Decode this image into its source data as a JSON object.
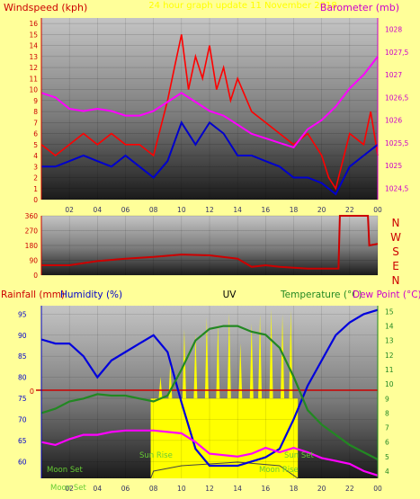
{
  "header": {
    "left_label": "Windspeed (kph)",
    "center_label": "24 hour graph update 11 November 2018",
    "right_label": "Barometer (mb)"
  },
  "colors": {
    "background": "#ffff99",
    "windspeed": "#ff0000",
    "gust": "#0000cc",
    "barometer": "#ff00ff",
    "direction": "#cc0000",
    "humidity": "#0000dd",
    "temperature": "#228822",
    "dewpoint": "#ff00ff",
    "uv": "#ffff00",
    "rainfall": "#cc0000",
    "daylight": "#ffff00",
    "axis_left": "#cc0000",
    "axis_right": "#cc00cc"
  },
  "bottom_header": {
    "rainfall": "Rainfall (mm)",
    "humidity": "Humidity (%)",
    "uv": "UV",
    "temperature": "Temperature (°C)",
    "dewpoint": "Dew Point (°C)"
  },
  "direction_labels": [
    "N",
    "W",
    "S",
    "E",
    "N"
  ],
  "annotations": {
    "moon_set": "Moon Set",
    "moon_set_bottom": "Moon Set",
    "sun_rise": "Sun Rise",
    "sun_set": "Sun Set",
    "moon_rise": "Moon Rise"
  },
  "chart_data": [
    {
      "type": "line",
      "title": "24 hour graph update 11 November 2018",
      "xlabel": "",
      "ylabel": "Windspeed (kph)",
      "y2label": "Barometer (mb)",
      "x_ticks": [
        "02",
        "04",
        "06",
        "08",
        "10",
        "12",
        "14",
        "16",
        "18",
        "20",
        "22",
        "00"
      ],
      "ylim": [
        0,
        16.5
      ],
      "yticks": [
        0,
        1,
        2,
        3,
        4,
        5,
        6,
        7,
        8,
        9,
        10,
        11,
        12,
        13,
        14,
        15,
        16
      ],
      "y2lim": [
        1024.25,
        1028.25
      ],
      "y2ticks": [
        1024.5,
        1025,
        1025.5,
        1026,
        1026.5,
        1027,
        1027.5,
        1028
      ],
      "y2tick_labels": [
        "1024,5",
        "1025",
        "1025,5",
        "1026",
        "1026,5",
        "1027",
        "1027,5",
        "1028"
      ],
      "series": [
        {
          "name": "Windspeed",
          "axis": "left",
          "x": [
            0,
            1,
            2,
            3,
            4,
            5,
            6,
            7,
            8,
            9,
            9.5,
            10,
            10.5,
            11,
            11.5,
            12,
            12.5,
            13,
            13.5,
            14,
            15,
            16,
            17,
            18,
            19,
            20,
            20.5,
            21,
            22,
            23,
            23.5,
            24
          ],
          "y": [
            5,
            4,
            5,
            6,
            5,
            6,
            5,
            5,
            4,
            9,
            12,
            15,
            10,
            13,
            11,
            14,
            10,
            12,
            9,
            11,
            8,
            7,
            6,
            5,
            6,
            4,
            2,
            1,
            6,
            5,
            8,
            4
          ]
        },
        {
          "name": "Gust",
          "axis": "left",
          "x": [
            0,
            1,
            2,
            3,
            4,
            5,
            6,
            7,
            8,
            9,
            10,
            11,
            12,
            13,
            14,
            15,
            16,
            17,
            18,
            19,
            20,
            21,
            22,
            23,
            24
          ],
          "y": [
            3,
            3,
            3.5,
            4,
            3.5,
            3,
            4,
            3,
            2,
            3.5,
            7,
            5,
            7,
            6,
            4,
            4,
            3.5,
            3,
            2,
            2,
            1.5,
            0.5,
            3,
            4,
            5
          ]
        },
        {
          "name": "Barometer",
          "axis": "right",
          "x": [
            0,
            1,
            2,
            3,
            4,
            5,
            6,
            7,
            8,
            9,
            10,
            11,
            12,
            13,
            14,
            15,
            16,
            17,
            18,
            19,
            20,
            21,
            22,
            23,
            24
          ],
          "y": [
            1026.6,
            1026.5,
            1026.25,
            1026.2,
            1026.25,
            1026.2,
            1026.1,
            1026.1,
            1026.2,
            1026.4,
            1026.6,
            1026.4,
            1026.2,
            1026.1,
            1025.9,
            1025.7,
            1025.6,
            1025.5,
            1025.4,
            1025.8,
            1026,
            1026.3,
            1026.7,
            1027,
            1027.4
          ]
        }
      ]
    },
    {
      "type": "line",
      "title": "",
      "xlabel": "",
      "ylabel": "",
      "ylim": [
        0,
        360
      ],
      "yticks": [
        0,
        90,
        180,
        270,
        360
      ],
      "series": [
        {
          "name": "",
          "x": [
            0,
            2,
            4,
            6,
            8,
            10,
            12,
            14,
            15,
            16,
            17,
            18,
            19,
            20,
            21.2,
            21.3,
            23.3,
            23.4,
            24
          ],
          "y": [
            60,
            60,
            85,
            100,
            110,
            125,
            120,
            100,
            50,
            60,
            50,
            45,
            40,
            40,
            40,
            360,
            360,
            180,
            190
          ]
        }
      ]
    },
    {
      "type": "line",
      "title": "",
      "xlabel": "",
      "ylabel": "Humidity (%)",
      "y2label": "Temperature (°C)",
      "rainfall_value": 0,
      "ylim": [
        56,
        97
      ],
      "yticks": [
        60,
        65,
        70,
        75,
        80,
        85,
        90,
        95
      ],
      "y2lim": [
        3.5,
        15.4
      ],
      "y2ticks": [
        4,
        5,
        6,
        7,
        8,
        9,
        10,
        11,
        12,
        13,
        14,
        15
      ],
      "series": [
        {
          "name": "Humidity",
          "axis": "left",
          "x": [
            0,
            1,
            2,
            3,
            4,
            5,
            6,
            7,
            8,
            9,
            10,
            11,
            12,
            13,
            14,
            15,
            16,
            17,
            18,
            19,
            20,
            21,
            22,
            23,
            24
          ],
          "y": [
            89,
            88,
            88,
            85,
            80,
            84,
            86,
            88,
            90,
            86,
            74,
            63,
            59,
            59,
            59,
            60,
            61,
            63,
            70,
            78,
            84,
            90,
            93,
            95,
            96
          ]
        },
        {
          "name": "Temperature",
          "axis": "right",
          "x": [
            0,
            1,
            2,
            3,
            4,
            5,
            6,
            7,
            8,
            9,
            10,
            11,
            12,
            13,
            14,
            15,
            16,
            17,
            18,
            19,
            20,
            21,
            22,
            23,
            24
          ],
          "y": [
            8,
            8.3,
            8.8,
            9,
            9.3,
            9.2,
            9.2,
            9,
            8.8,
            9.2,
            11,
            13,
            13.8,
            14,
            14,
            13.6,
            13.4,
            12.5,
            10.5,
            8.2,
            7.2,
            6.5,
            5.8,
            5.3,
            4.8
          ]
        },
        {
          "name": "Dew Point",
          "axis": "right",
          "x": [
            0,
            1,
            2,
            3,
            4,
            5,
            6,
            7,
            8,
            9,
            10,
            11,
            12,
            13,
            14,
            15,
            16,
            17,
            18,
            19,
            20,
            21,
            22,
            23,
            24
          ],
          "y": [
            6,
            5.8,
            6.2,
            6.5,
            6.5,
            6.7,
            6.8,
            6.8,
            6.8,
            6.7,
            6.6,
            6,
            5.2,
            5.1,
            5,
            5.2,
            5.6,
            5.3,
            5.6,
            5.3,
            4.9,
            4.7,
            4.5,
            4.0,
            3.7
          ]
        }
      ]
    }
  ]
}
